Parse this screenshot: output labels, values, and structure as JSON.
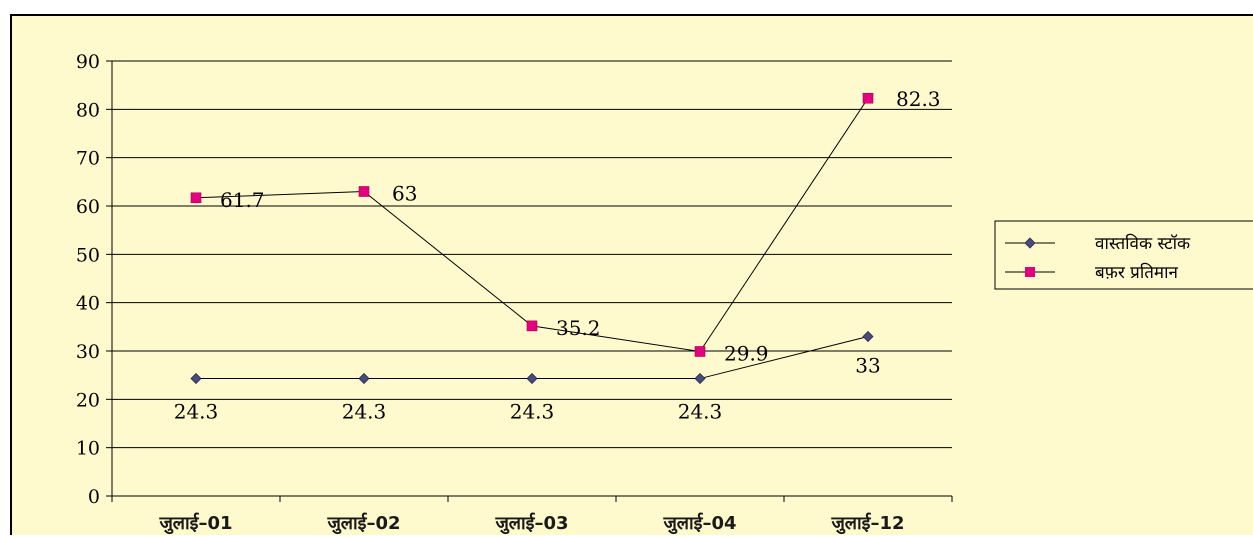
{
  "chart_data": {
    "type": "line",
    "categories": [
      "जुलाई–01",
      "जुलाई–02",
      "जुलाई–03",
      "जुलाई–04",
      "जुलाई–12"
    ],
    "series": [
      {
        "name": "वास्तविक स्टॉक",
        "values": [
          24.3,
          24.3,
          24.3,
          24.3,
          33
        ],
        "labels": [
          "24.3",
          "24.3",
          "24.3",
          "24.3",
          "33"
        ],
        "color": "#4B4B7A",
        "marker": "diamond"
      },
      {
        "name": "बफ़र प्रतिमान",
        "values": [
          61.7,
          63,
          35.2,
          29.9,
          82.3
        ],
        "labels": [
          "61.7",
          "63",
          "35.2",
          "29.9",
          "82.3"
        ],
        "color": "#E5007E",
        "marker": "square"
      }
    ],
    "title": "",
    "xlabel": "",
    "ylabel": "",
    "ylim": [
      0,
      90
    ],
    "yticks": [
      "0",
      "10",
      "20",
      "30",
      "40",
      "50",
      "60",
      "70",
      "80",
      "90"
    ],
    "grid": true,
    "legend": "right",
    "background": "#FFFACD"
  }
}
